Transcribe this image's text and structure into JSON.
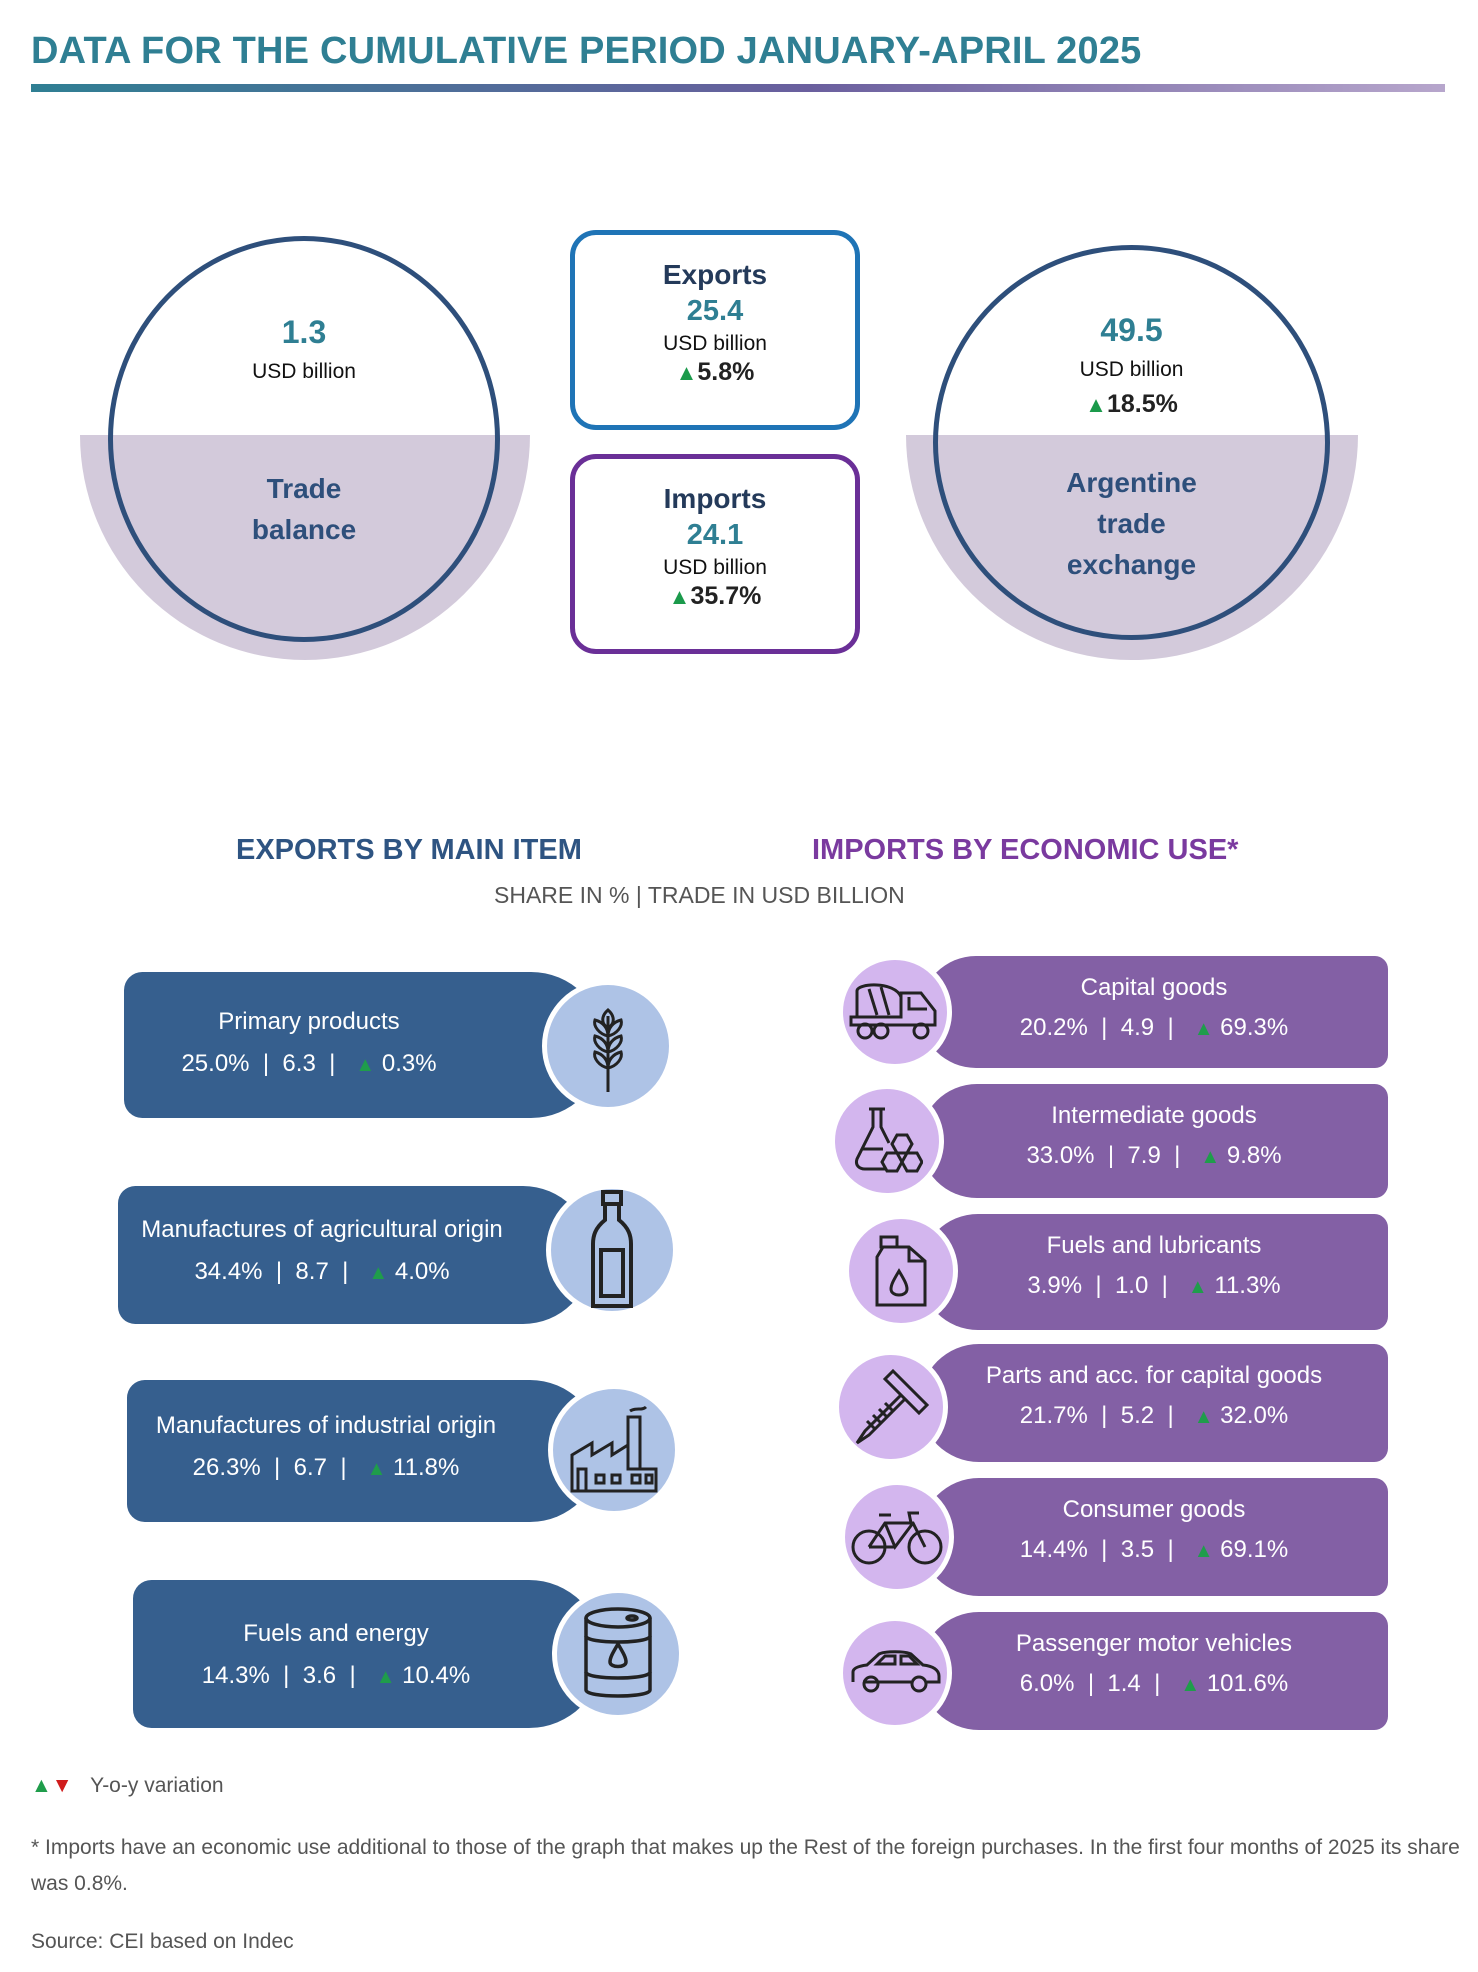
{
  "header": {
    "title": "DATA FOR THE CUMULATIVE PERIOD JANUARY-APRIL 2025"
  },
  "trade_balance": {
    "value": "1.3",
    "unit": "USD billion",
    "label_lines": [
      "Trade",
      "balance"
    ]
  },
  "exports_box": {
    "title": "Exports",
    "value": "25.4",
    "unit": "USD billion",
    "variation": "5.8%"
  },
  "imports_box": {
    "title": "Imports",
    "value": "24.1",
    "unit": "USD billion",
    "variation": "35.7%"
  },
  "trade_exchange": {
    "value": "49.5",
    "unit": "USD billion",
    "variation": "18.5%",
    "label_lines": [
      "Argentine",
      "trade",
      "exchange"
    ]
  },
  "sections": {
    "exports_title": "EXPORTS BY MAIN ITEM",
    "imports_title": "IMPORTS BY ECONOMIC USE*",
    "subtitle": "SHARE IN % | TRADE IN USD BILLION"
  },
  "exports_items": [
    {
      "name": "Primary products",
      "share": "25.0%",
      "value": "6.3",
      "variation": "0.3%",
      "icon": "wheat-icon"
    },
    {
      "name": "Manufactures of agricultural origin",
      "share": "34.4%",
      "value": "8.7",
      "variation": "4.0%",
      "icon": "bottle-icon"
    },
    {
      "name": "Manufactures of industrial origin",
      "share": "26.3%",
      "value": "6.7",
      "variation": "11.8%",
      "icon": "factory-icon"
    },
    {
      "name": "Fuels and energy",
      "share": "14.3%",
      "value": "3.6",
      "variation": "10.4%",
      "icon": "oil-barrel-icon"
    }
  ],
  "imports_items": [
    {
      "name": "Capital goods",
      "share": "20.2%",
      "value": "4.9",
      "variation": "69.3%",
      "icon": "concrete-mixer-truck-icon"
    },
    {
      "name": "Intermediate goods",
      "share": "33.0%",
      "value": "7.9",
      "variation": "9.8%",
      "icon": "chemistry-flask-icon"
    },
    {
      "name": "Fuels and lubricants",
      "share": "3.9%",
      "value": "1.0",
      "variation": "11.3%",
      "icon": "fuel-can-icon"
    },
    {
      "name": "Parts and acc. for capital goods",
      "share": "21.7%",
      "value": "5.2",
      "variation": "32.0%",
      "icon": "screw-icon"
    },
    {
      "name": "Consumer goods",
      "share": "14.4%",
      "value": "3.5",
      "variation": "69.1%",
      "icon": "bicycle-icon"
    },
    {
      "name": "Passenger motor vehicles",
      "share": "6.0%",
      "value": "1.4",
      "variation": "101.6%",
      "icon": "car-icon"
    }
  ],
  "legend": {
    "text": "Y-o-y variation"
  },
  "footnote": "* Imports have an economic use additional to those of the graph that makes up the Rest of the foreign purchases. In the first four months of 2025 its share was 0.8%.",
  "source": "Source: CEI based on Indec",
  "colors": {
    "title": "#2f7f93",
    "export_pill": "#365f8e",
    "import_pill": "#8360a5",
    "positive": "#1f9d4b",
    "negative": "#d01c1c"
  }
}
